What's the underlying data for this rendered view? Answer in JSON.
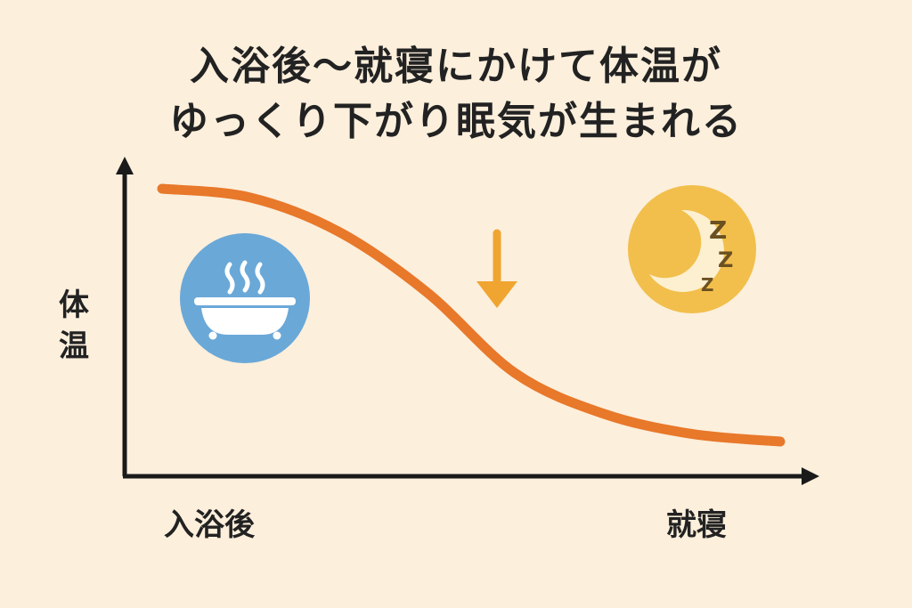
{
  "chart_data": {
    "type": "line",
    "title_lines": [
      "入浴後〜就寝にかけて体温が",
      "ゆっくり下がり眠気が生まれる"
    ],
    "ylabel": "体温",
    "x_tick_labels": [
      "入浴後",
      "就寝"
    ],
    "trend": "decreasing",
    "x": [
      0,
      1,
      2,
      3,
      4,
      5,
      6,
      7
    ],
    "values": [
      1.0,
      0.965,
      0.83,
      0.59,
      0.27,
      0.11,
      0.03,
      0.0
    ],
    "grid": false,
    "annotations": [
      "bath-icon",
      "down-arrow-icon",
      "moon-sleep-icon"
    ],
    "colors": {
      "line": "#e8782a",
      "arrow": "#f0a531",
      "bath_circle": "#6aa8d8",
      "moon_circle": "#f2bf4c",
      "zzz": "#6b5020",
      "background": "#fcefdc",
      "axis": "#1a1a1a"
    },
    "zzz": "Z Z Z"
  }
}
